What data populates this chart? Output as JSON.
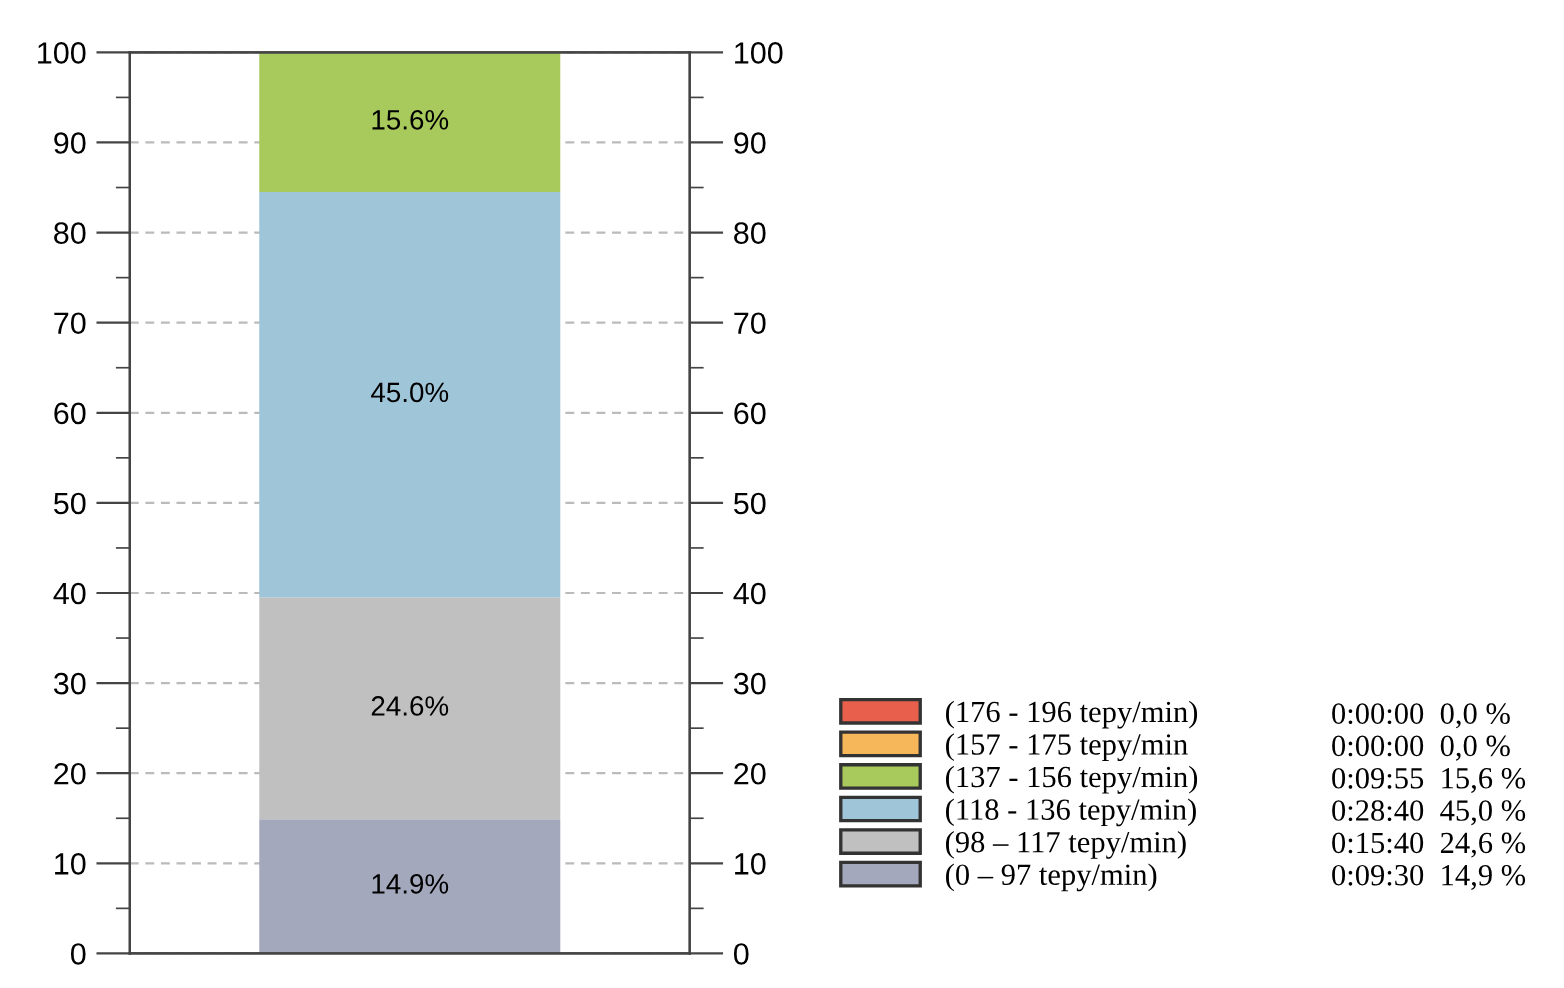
{
  "chart_data": {
    "type": "bar",
    "stacked": true,
    "categories": [
      null
    ],
    "series": [
      {
        "name": "(0 – 97 tepy/min)",
        "color": "#a4a8bc",
        "values": [
          14.9
        ],
        "value_labels": [
          "14.9%"
        ]
      },
      {
        "name": "(98 – 117 tepy/min)",
        "color": "#c0c0c0",
        "values": [
          24.6
        ],
        "value_labels": [
          "24.6%"
        ]
      },
      {
        "name": "(118 - 136 tepy/min)",
        "color": "#9fc5d8",
        "values": [
          45.0
        ],
        "value_labels": [
          "45.0%"
        ]
      },
      {
        "name": "(137 - 156 tepy/min)",
        "color": "#a8c95c",
        "values": [
          15.6
        ],
        "value_labels": [
          "15.6%"
        ]
      },
      {
        "name": "(157 - 175 tepy/min",
        "color": "#f5b75a",
        "values": [
          0
        ],
        "value_labels": [
          null
        ]
      },
      {
        "name": "(176 - 196 tepy/min)",
        "color": "#e8604c",
        "values": [
          0
        ],
        "value_labels": [
          null
        ]
      }
    ],
    "annotations": [
      "0:09:30  14,9 %",
      "0:15:40  24,6 %",
      "0:28:40  45,0 %",
      "0:09:55  15,6 %",
      "0:00:00  0,0 %",
      "0:00:00  0,0 %"
    ],
    "ylim": [
      0,
      100
    ],
    "yticks": [
      0,
      10,
      20,
      30,
      40,
      50,
      60,
      70,
      80,
      90,
      100
    ],
    "y2lim": [
      0,
      100
    ],
    "y2ticks": [
      0,
      10,
      20,
      30,
      40,
      50,
      60,
      70,
      80,
      90,
      100
    ],
    "grid": "y",
    "legend": "right"
  }
}
